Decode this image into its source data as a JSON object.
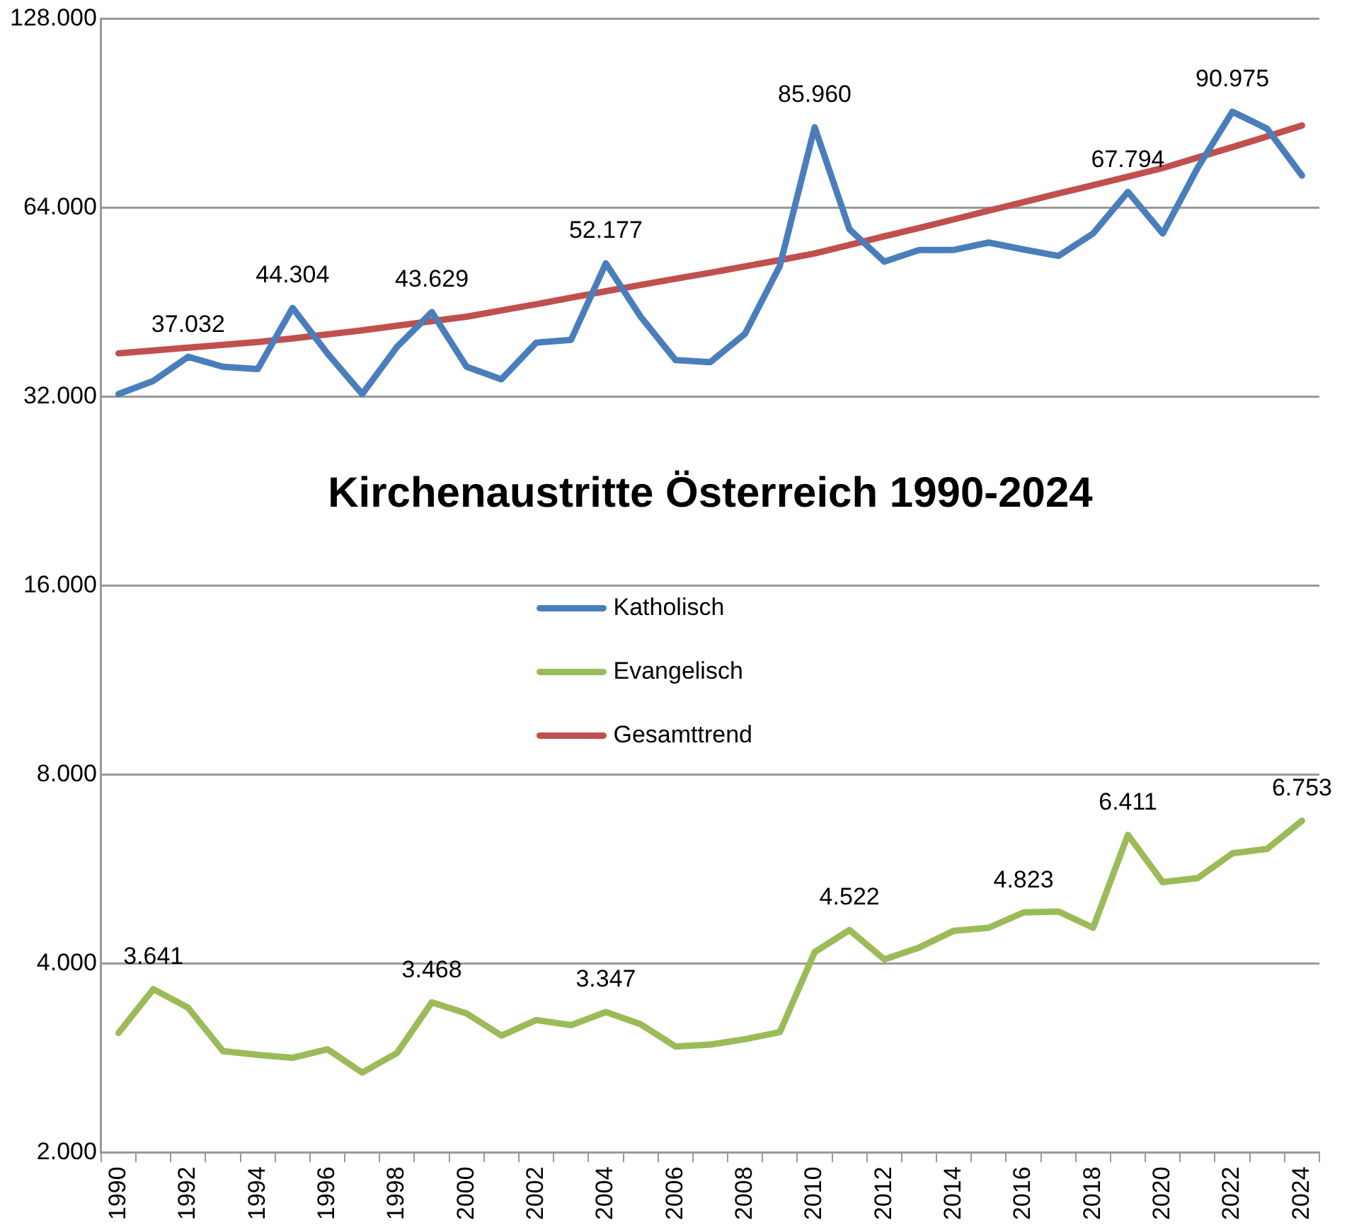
{
  "chart_data": {
    "type": "line",
    "title": "Kirchenaustritte Österreich 1990-2024",
    "categories": [
      "1990",
      null,
      "1992",
      null,
      "1994",
      null,
      "1996",
      null,
      "1998",
      null,
      "2000",
      null,
      "2002",
      null,
      "2004",
      null,
      "2006",
      null,
      "2008",
      null,
      "2010",
      null,
      "2012",
      null,
      "2014",
      null,
      "2016",
      null,
      "2018",
      null,
      "2020",
      null,
      "2022",
      null,
      "2024"
    ],
    "series": [
      {
        "name": "Katholisch",
        "color": "#4a7ebb",
        "values": [
          32300,
          33900,
          37032,
          35700,
          35400,
          44304,
          37500,
          32300,
          38400,
          43629,
          35700,
          34100,
          39000,
          39400,
          52177,
          42900,
          36600,
          36300,
          40300,
          51700,
          85960,
          59100,
          52500,
          54800,
          54800,
          56300,
          54900,
          53600,
          58200,
          67794,
          58200,
          74000,
          90975,
          85500,
          72000
        ],
        "value_labels": [
          null,
          null,
          "37.032",
          null,
          null,
          "44.304",
          null,
          null,
          null,
          "43.629",
          null,
          null,
          null,
          null,
          "52.177",
          null,
          null,
          null,
          null,
          null,
          "85.960",
          null,
          null,
          null,
          null,
          null,
          null,
          null,
          null,
          "67.794",
          null,
          null,
          "90.975",
          null,
          null
        ]
      },
      {
        "name": "Evangelisch",
        "color": "#9bbb59",
        "values": [
          3100,
          3641,
          3400,
          2900,
          2860,
          2830,
          2920,
          2680,
          2880,
          3468,
          3330,
          3070,
          3250,
          3190,
          3347,
          3200,
          2950,
          2970,
          3030,
          3110,
          4170,
          4522,
          4060,
          4240,
          4510,
          4560,
          4823,
          4840,
          4560,
          6411,
          5390,
          5470,
          5990,
          6090,
          6753
        ],
        "value_labels": [
          null,
          "3.641",
          null,
          null,
          null,
          null,
          null,
          null,
          null,
          "3.468",
          null,
          null,
          null,
          null,
          "3.347",
          null,
          null,
          null,
          null,
          null,
          null,
          "4.522",
          null,
          null,
          null,
          null,
          "4.823",
          null,
          null,
          "6.411",
          null,
          null,
          null,
          null,
          "6.753"
        ]
      },
      {
        "name": "Gesamttrend",
        "color": "#c0504d",
        "values": [
          37500,
          37900,
          38300,
          38700,
          39100,
          39600,
          40200,
          40800,
          41500,
          42200,
          42900,
          43900,
          44900,
          46000,
          47100,
          48200,
          49300,
          50400,
          51600,
          52800,
          54100,
          55800,
          57600,
          59400,
          61300,
          63300,
          65300,
          67400,
          69500,
          71700,
          74000,
          76900,
          79900,
          83100,
          86500
        ]
      }
    ],
    "log": "y",
    "ylim": [
      2000,
      128000
    ],
    "yticks": [
      {
        "value": 2000,
        "label": "2.000"
      },
      {
        "value": 4000,
        "label": "4.000"
      },
      {
        "value": 8000,
        "label": "8.000"
      },
      {
        "value": 16000,
        "label": "16.000"
      },
      {
        "value": 32000,
        "label": "32.000"
      },
      {
        "value": 64000,
        "label": "64.000"
      },
      {
        "value": 128000,
        "label": "128.000"
      }
    ],
    "grid": "y",
    "legend": "center",
    "marker": "none",
    "line_style": "solid"
  }
}
